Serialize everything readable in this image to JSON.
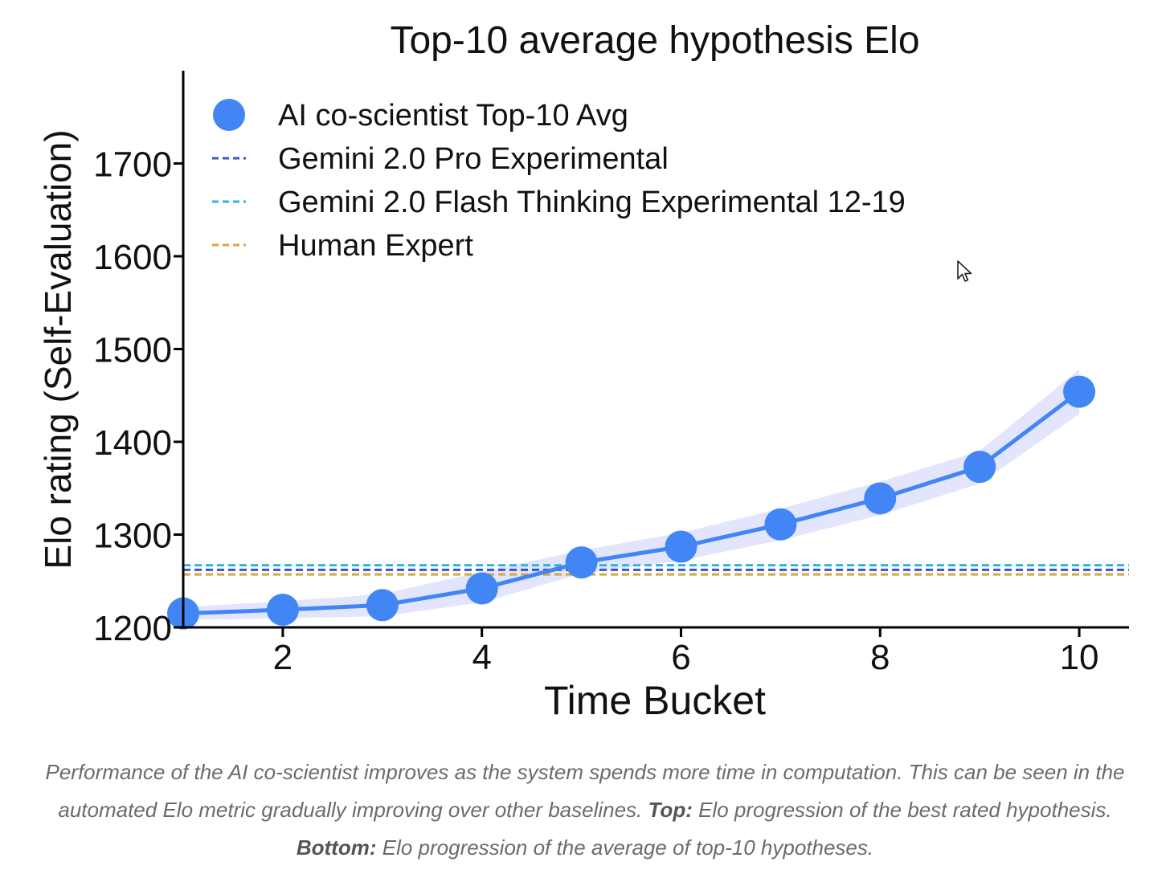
{
  "chart_data": {
    "type": "line",
    "title": "Top-10 average hypothesis Elo",
    "xlabel": "Time Bucket",
    "ylabel": "Elo rating (Self-Evaluation)",
    "xlim": [
      1,
      10.5
    ],
    "ylim": [
      1200,
      1800
    ],
    "xticks": [
      "2",
      "4",
      "6",
      "8",
      "10"
    ],
    "yticks": [
      "1200",
      "1300",
      "1400",
      "1500",
      "1600",
      "1700"
    ],
    "series": [
      {
        "name": "AI co-scientist Top-10 Avg",
        "color": "#4285f4",
        "band_color": "#dde1fb",
        "x": [
          1,
          2,
          3,
          4,
          5,
          6,
          7,
          8,
          9,
          10
        ],
        "y": [
          1215,
          1219,
          1224,
          1242,
          1270,
          1287,
          1311,
          1339,
          1373,
          1454
        ],
        "band_upper": [
          1222,
          1228,
          1236,
          1260,
          1283,
          1302,
          1328,
          1357,
          1390,
          1478
        ],
        "band_lower": [
          1208,
          1210,
          1212,
          1227,
          1258,
          1272,
          1294,
          1321,
          1355,
          1430
        ]
      }
    ],
    "reference_lines": [
      {
        "name": "Gemini 2.0 Pro Experimental",
        "value": 1262,
        "color": "#3d55c4"
      },
      {
        "name": "Gemini 2.0 Flash Thinking Experimental 12-19",
        "value": 1267,
        "color": "#2bb6e0"
      },
      {
        "name": "Human Expert",
        "value": 1257,
        "color": "#d9a63b"
      }
    ],
    "legend": "top-left",
    "grid": false
  },
  "caption": {
    "text1": "Performance of the AI co-scientist improves as the system spends more time in computation. This can be seen in the automated Elo metric gradually improving over other baselines. ",
    "top_label": "Top:",
    "text2": " Elo progression of the best rated hypothesis. ",
    "bottom_label": "Bottom:",
    "text3": " Elo progression of the average of top-10 hypotheses."
  },
  "cursor_icon": "mouse-pointer-icon"
}
